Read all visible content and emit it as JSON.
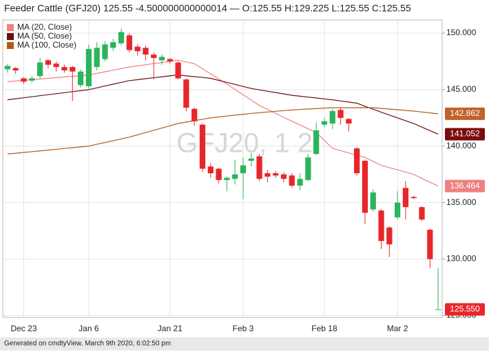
{
  "chart_data": {
    "type": "candlestick",
    "title": "Feeder Cattle (GFJ20) 125.55 -4.500000000000014 — O:125.55 H:129.225 L:125.55 C:125.55",
    "watermark": "GFJ20, 1 2",
    "footer": "Generated on cmdtyView, March 9th 2020, 6:02:50 pm",
    "categories": [
      null,
      null,
      "Dec 23",
      null,
      null,
      null,
      null,
      null,
      null,
      null,
      "Jan 6",
      null,
      null,
      null,
      null,
      null,
      null,
      null,
      null,
      null,
      "Jan 21",
      null,
      null,
      null,
      null,
      null,
      null,
      null,
      null,
      "Feb 3",
      null,
      null,
      null,
      null,
      null,
      null,
      null,
      null,
      null,
      "Feb 18",
      null,
      null,
      null,
      null,
      null,
      null,
      null,
      null,
      "Mar 2",
      null,
      null,
      null,
      null,
      null
    ],
    "open": [
      146.8,
      146.9,
      146.0,
      145.8,
      146.2,
      147.6,
      147.3,
      147.0,
      147.0,
      145.4,
      145.3,
      147.0,
      147.7,
      148.7,
      149.1,
      149.8,
      148.8,
      148.7,
      148.1,
      147.6,
      147.7,
      147.4,
      145.9,
      143.3,
      141.9,
      138.2,
      138.0,
      137.0,
      137.1,
      137.6,
      138.7,
      139.1,
      137.6,
      137.6,
      137.5,
      137.4,
      136.5,
      137.0,
      139.3,
      141.9,
      142.0,
      143.2,
      142.4,
      139.8,
      138.7,
      134.4,
      134.3,
      132.8,
      133.7,
      136.3,
      135.5,
      134.6,
      132.6,
      125.55
    ],
    "high": [
      147.3,
      147.0,
      146.1,
      146.2,
      147.8,
      147.7,
      147.5,
      147.2,
      147.1,
      146.8,
      149.0,
      149.2,
      149.3,
      149.5,
      150.4,
      150.0,
      149.0,
      148.9,
      148.3,
      148.1,
      147.8,
      147.5,
      146.0,
      143.4,
      142.0,
      138.5,
      138.1,
      137.3,
      138.8,
      139.0,
      139.4,
      139.3,
      137.9,
      137.8,
      137.7,
      137.6,
      137.6,
      139.3,
      142.1,
      142.5,
      143.3,
      143.4,
      142.5,
      139.9,
      138.8,
      136.2,
      134.4,
      132.9,
      136.0,
      136.9,
      135.6,
      134.7,
      132.7,
      129.225
    ],
    "low": [
      146.5,
      146.4,
      145.5,
      145.6,
      146.0,
      146.9,
      146.6,
      146.5,
      144.0,
      145.2,
      145.1,
      146.7,
      147.5,
      148.4,
      148.9,
      148.3,
      148.0,
      147.6,
      145.9,
      147.2,
      147.3,
      145.9,
      143.1,
      141.8,
      137.7,
      137.2,
      136.7,
      136.0,
      136.6,
      135.3,
      138.2,
      136.9,
      136.8,
      137.2,
      136.8,
      136.3,
      136.1,
      136.9,
      139.2,
      141.7,
      141.5,
      141.9,
      141.3,
      137.4,
      133.1,
      134.2,
      130.9,
      130.2,
      133.5,
      133.5,
      135.3,
      133.4,
      129.2,
      125.55
    ],
    "close": [
      147.1,
      146.7,
      145.7,
      146.0,
      147.4,
      147.2,
      147.0,
      146.7,
      146.6,
      146.6,
      148.6,
      148.7,
      149.0,
      149.2,
      150.1,
      148.5,
      148.4,
      148.1,
      147.8,
      147.9,
      147.5,
      146.0,
      143.4,
      142.2,
      138.0,
      137.6,
      137.0,
      137.2,
      137.5,
      138.3,
      138.9,
      137.1,
      137.3,
      137.4,
      137.1,
      136.5,
      137.1,
      139.0,
      141.4,
      142.2,
      143.1,
      142.5,
      142.0,
      137.6,
      134.1,
      135.9,
      131.6,
      131.3,
      135.0,
      134.6,
      135.4,
      133.5,
      130.0,
      125.55
    ],
    "last_close_label": "125.550",
    "up_color": "#2bb45b",
    "down_color": "#e8262a",
    "series": [
      {
        "name": "MA (20, Close)",
        "color": "#f08080",
        "tag_color": "#f08080",
        "values": [
          145.7,
          145.76,
          145.82,
          145.88,
          145.94,
          146.0,
          146.06,
          146.12,
          146.18,
          146.24,
          146.3,
          146.44,
          146.58,
          146.72,
          146.86,
          147.0,
          147.1,
          147.2,
          147.3,
          147.4,
          147.5,
          147.6,
          147.45,
          147.3,
          146.85,
          146.4,
          145.95,
          145.5,
          145.02,
          144.55,
          144.08,
          143.6,
          143.25,
          142.9,
          142.55,
          142.2,
          141.87,
          141.53,
          141.2,
          140.5,
          139.8,
          139.6,
          139.4,
          139.2,
          139.0,
          138.65,
          138.3,
          138.1,
          137.9,
          137.7,
          137.5,
          137.15,
          136.8,
          136.464
        ]
      },
      {
        "name": "MA (50, Close)",
        "color": "#6b0f0f",
        "tag_color": "#7a0c0c",
        "values": [
          144.1,
          144.19,
          144.28,
          144.37,
          144.46,
          144.55,
          144.64,
          144.73,
          144.82,
          144.91,
          145.0,
          145.16,
          145.32,
          145.48,
          145.64,
          145.8,
          145.88,
          145.97,
          146.05,
          146.13,
          146.22,
          146.3,
          146.22,
          146.15,
          146.08,
          146.0,
          145.82,
          145.64,
          145.46,
          145.28,
          145.1,
          144.98,
          144.86,
          144.74,
          144.62,
          144.5,
          144.42,
          144.34,
          144.26,
          144.18,
          144.1,
          144.0,
          143.9,
          143.8,
          143.53,
          143.27,
          143.0,
          142.75,
          142.5,
          142.25,
          142.0,
          141.68,
          141.37,
          141.052
        ]
      },
      {
        "name": "MA (100, Close)",
        "color": "#b05a1a",
        "tag_color": "#c0622a",
        "values": [
          139.3,
          139.37,
          139.44,
          139.51,
          139.58,
          139.65,
          139.72,
          139.79,
          139.86,
          139.93,
          140.0,
          140.16,
          140.32,
          140.48,
          140.64,
          140.8,
          141.0,
          141.2,
          141.4,
          141.6,
          141.8,
          142.0,
          142.13,
          142.25,
          142.38,
          142.5,
          142.58,
          142.66,
          142.74,
          142.82,
          142.9,
          142.96,
          143.02,
          143.08,
          143.14,
          143.2,
          143.24,
          143.28,
          143.32,
          143.36,
          143.4,
          143.4,
          143.4,
          143.4,
          143.4,
          143.4,
          143.34,
          143.28,
          143.22,
          143.16,
          143.1,
          143.02,
          142.94,
          142.862
        ]
      }
    ],
    "ylim": [
      124.9,
      151.1
    ],
    "yticks": [
      {
        "value": 125,
        "label": "125.000"
      },
      {
        "value": 130,
        "label": "130.000"
      },
      {
        "value": 135,
        "label": "135.000"
      },
      {
        "value": 140,
        "label": "140.000"
      },
      {
        "value": 145,
        "label": "145.000"
      },
      {
        "value": 150,
        "label": "150.000"
      }
    ],
    "grid": true,
    "legend": "top-left"
  }
}
